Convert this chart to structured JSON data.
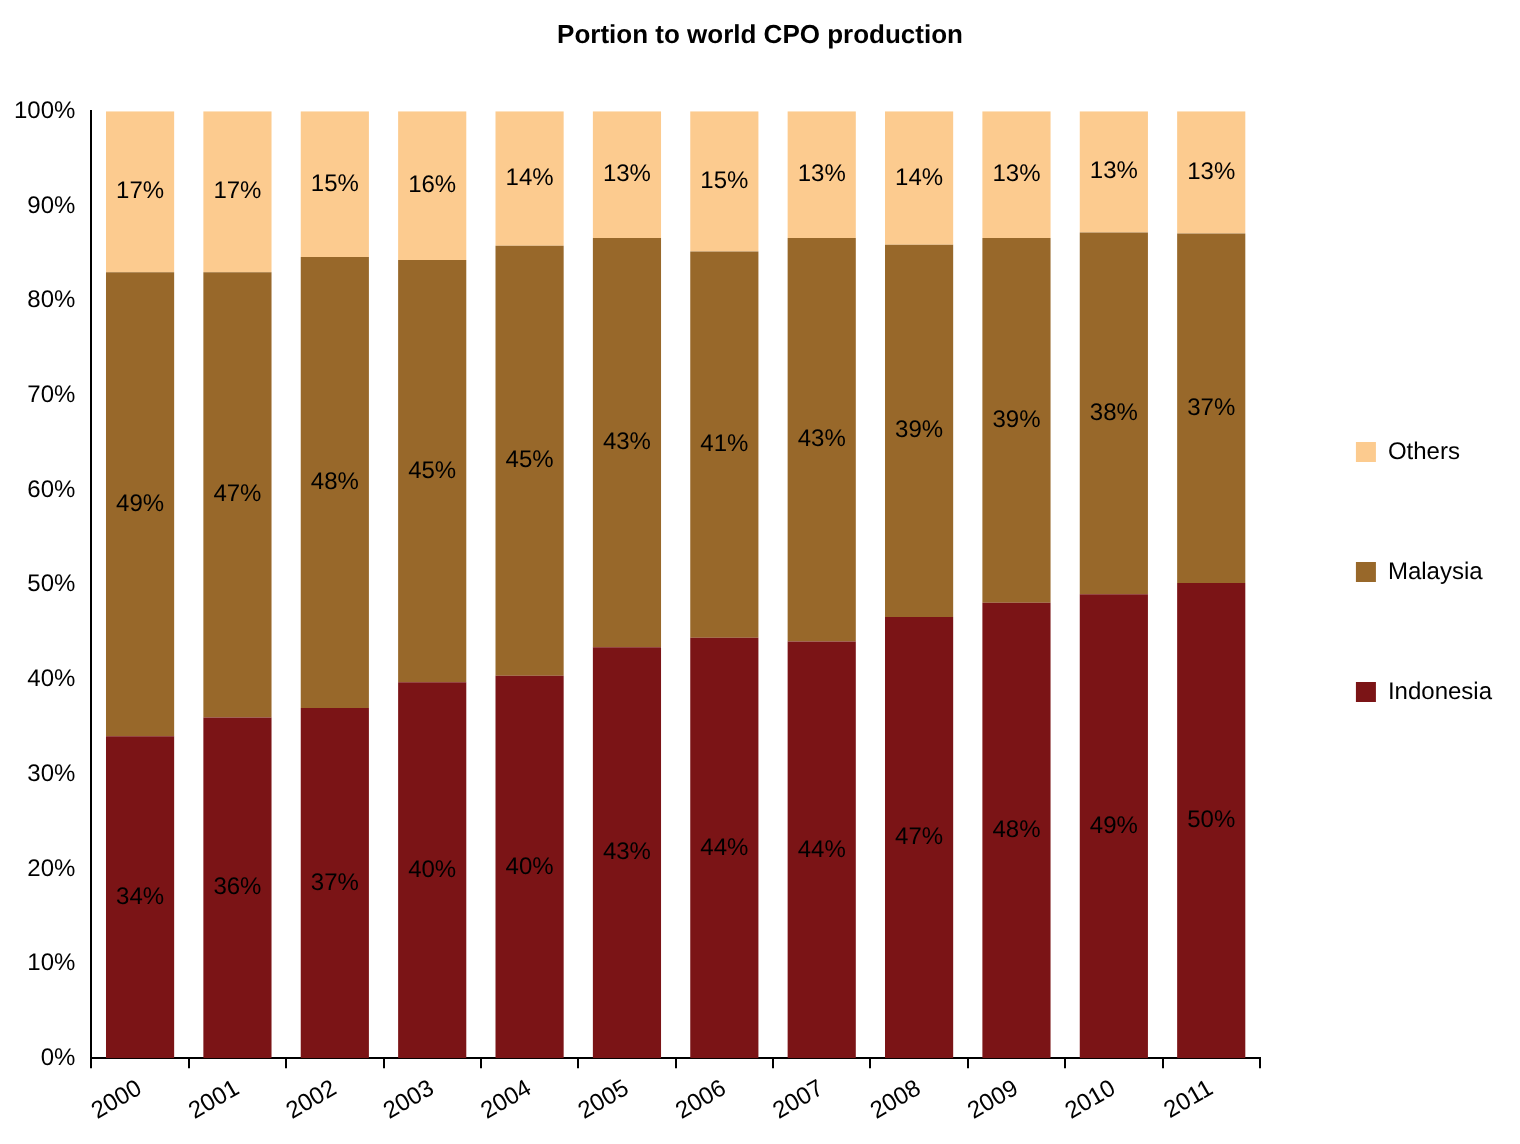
{
  "chart_data": {
    "type": "bar",
    "title": "Portion to world CPO production",
    "stacked": true,
    "legend": "right",
    "grid": false,
    "data_labels": true,
    "categories": [
      "2000",
      "2001",
      "2002",
      "2003",
      "2004",
      "2005",
      "2006",
      "2007",
      "2008",
      "2009",
      "2010",
      "2011"
    ],
    "ylim": [
      0,
      100
    ],
    "yticks": [
      {
        "value": 0,
        "label": "0%"
      },
      {
        "value": 10,
        "label": "10%"
      },
      {
        "value": 20,
        "label": "20%"
      },
      {
        "value": 30,
        "label": "30%"
      },
      {
        "value": 40,
        "label": "40%"
      },
      {
        "value": 50,
        "label": "50%"
      },
      {
        "value": 60,
        "label": "60%"
      },
      {
        "value": 70,
        "label": "70%"
      },
      {
        "value": 80,
        "label": "80%"
      },
      {
        "value": 90,
        "label": "90%"
      },
      {
        "value": 100,
        "label": "100%"
      }
    ],
    "series": [
      {
        "name": "Indonesia",
        "color": "#7b1416",
        "values": [
          34,
          36,
          37,
          39.7,
          40.4,
          43.4,
          44.4,
          44,
          46.6,
          48.1,
          49,
          50.2
        ],
        "value_labels": [
          "34%",
          "36%",
          "37%",
          "40%",
          "40%",
          "43%",
          "44%",
          "44%",
          "47%",
          "48%",
          "49%",
          "50%"
        ]
      },
      {
        "name": "Malaysia",
        "color": "#98682a",
        "values": [
          49,
          47,
          47.6,
          44.6,
          45.4,
          43.2,
          40.8,
          42.6,
          39.3,
          38.5,
          38.2,
          36.9
        ],
        "value_labels": [
          "49%",
          "47%",
          "48%",
          "45%",
          "45%",
          "43%",
          "41%",
          "43%",
          "39%",
          "39%",
          "38%",
          "37%"
        ]
      },
      {
        "name": "Others",
        "color": "#fccb8f",
        "values": [
          17,
          17,
          15.4,
          15.7,
          14.2,
          13.4,
          14.8,
          13.4,
          14.1,
          13.4,
          12.8,
          12.9
        ],
        "value_labels": [
          "17%",
          "17%",
          "15%",
          "16%",
          "14%",
          "13%",
          "15%",
          "13%",
          "14%",
          "13%",
          "13%",
          "13%"
        ]
      }
    ]
  }
}
